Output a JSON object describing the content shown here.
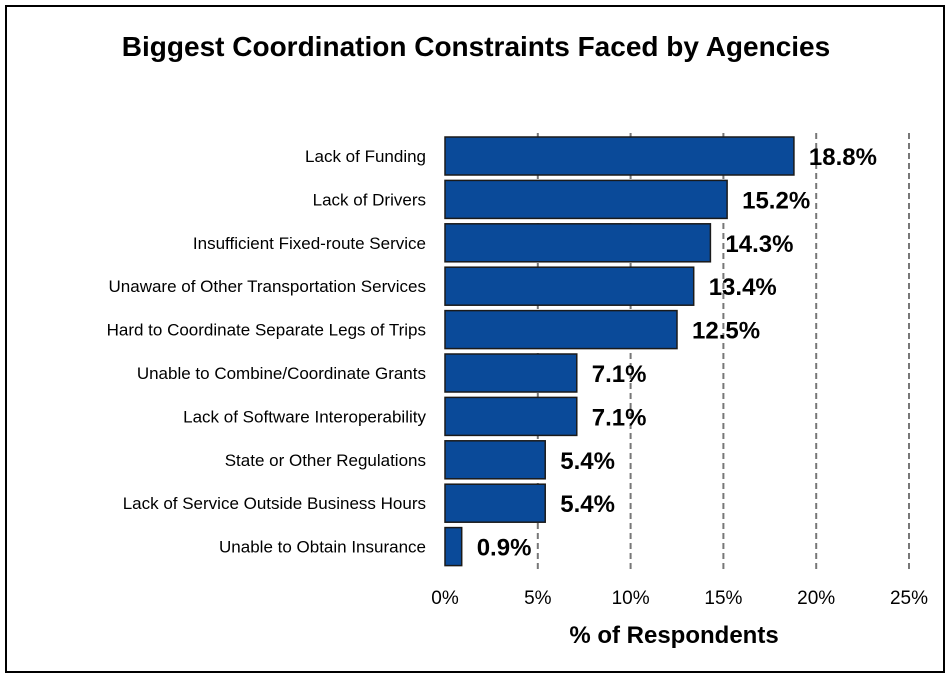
{
  "chart_data": {
    "type": "bar",
    "orientation": "horizontal",
    "title": "Biggest Coordination Constraints Faced by Agencies",
    "xlabel": "% of Respondents",
    "ylabel": "",
    "categories": [
      "Lack of Funding",
      "Lack of Drivers",
      "Insufficient Fixed-route Service",
      "Unaware of Other Transportation Services",
      "Hard to Coordinate Separate Legs of Trips",
      "Unable to Combine/Coordinate Grants",
      "Lack of Software Interoperability",
      "State or Other Regulations",
      "Lack of Service Outside Business Hours",
      "Unable to Obtain Insurance"
    ],
    "values": [
      18.8,
      15.2,
      14.3,
      13.4,
      12.5,
      7.1,
      7.1,
      5.4,
      5.4,
      0.9
    ],
    "value_labels": [
      "18.8%",
      "15.2%",
      "14.3%",
      "13.4%",
      "12.5%",
      "7.1%",
      "7.1%",
      "5.4%",
      "5.4%",
      "0.9%"
    ],
    "xlim": [
      0,
      25
    ],
    "x_ticks": [
      0,
      5,
      10,
      15,
      20,
      25
    ],
    "x_tick_labels": [
      "0%",
      "5%",
      "10%",
      "15%",
      "20%",
      "25%"
    ],
    "grid": "vertical dashed",
    "legend": "none",
    "bar_color": "#0a4a99",
    "bar_edge_color": "#1a1a1a",
    "grid_color": "#777777"
  }
}
